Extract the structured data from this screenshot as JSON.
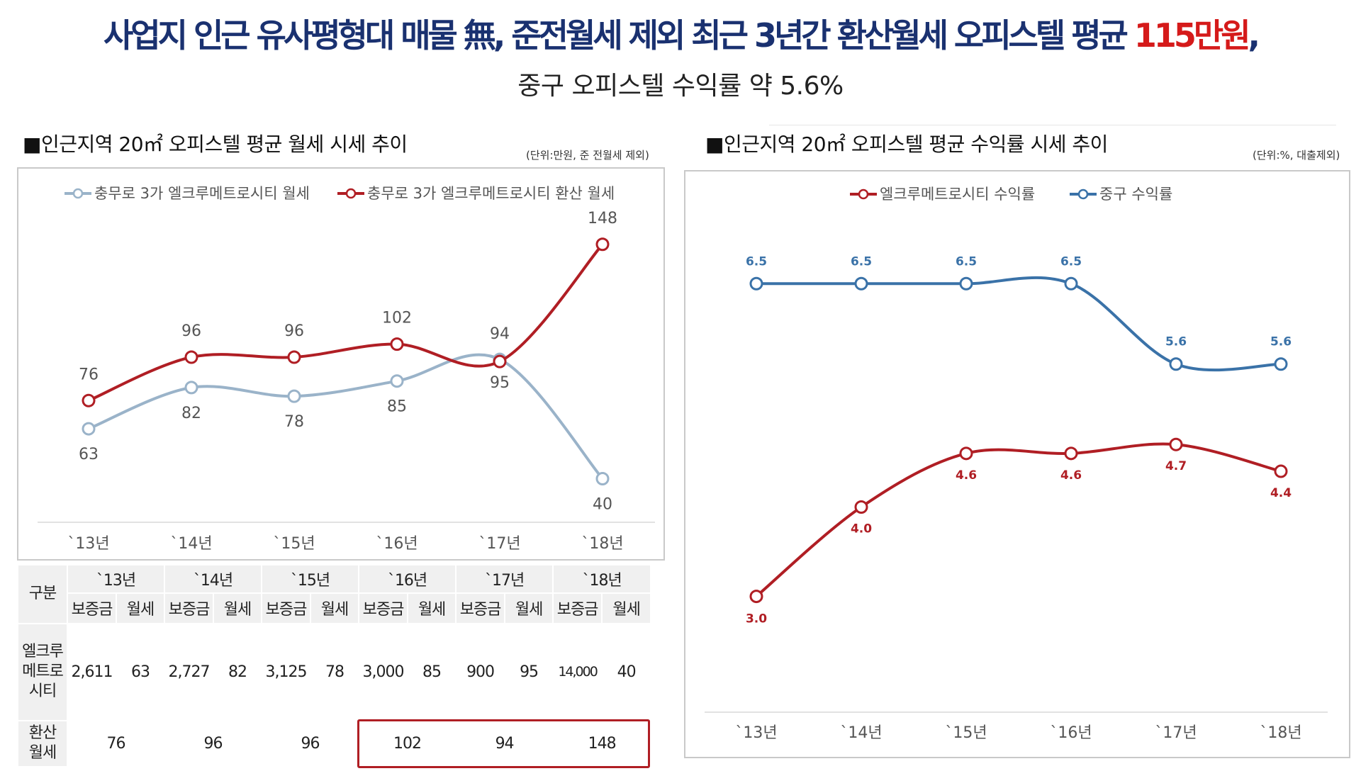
{
  "headline": {
    "text": "사업지 인근 유사평형대 매물 無, 준전월세 제외 최근 3년간 환산월세 오피스텔 평균 ",
    "highlight": "115만원",
    "tail": ",",
    "sub": "중구 오피스텔 수익률 약 5.6%"
  },
  "left": {
    "title": "■인근지역 20㎡ 오피스텔 평균 월세 시세 추이",
    "unit": "(단위:만원, 준 전월세 제외)"
  },
  "right": {
    "title": "■인근지역 20㎡ 오피스텔 평균 수익률 시세 추이",
    "unit": "(단위:%, 대출제외)"
  },
  "chart_data": [
    {
      "type": "line",
      "categories": [
        "`13년",
        "`14년",
        "`15년",
        "`16년",
        "`17년",
        "`18년"
      ],
      "series": [
        {
          "name": "충무로 3가 엘크루메트로시티 월세",
          "values": [
            63,
            82,
            78,
            85,
            95,
            40
          ],
          "color": "#9ab3c9"
        },
        {
          "name": "충무로 3가 엘크루메트로시티 환산 월세",
          "values": [
            76,
            96,
            96,
            102,
            94,
            148
          ],
          "color": "#b01e24"
        }
      ],
      "labels": {
        "s0": [
          "63",
          "82",
          "78",
          "85",
          "95",
          "40"
        ],
        "s1": [
          "76",
          "96",
          "96",
          "102",
          "94",
          "148"
        ]
      },
      "ylim": [
        0,
        160
      ],
      "grid": false,
      "legend": "top"
    },
    {
      "type": "line",
      "categories": [
        "`13년",
        "`14년",
        "`15년",
        "`16년",
        "`17년",
        "`18년"
      ],
      "series": [
        {
          "name": "엘크루메트로시티 수익률",
          "values": [
            3.0,
            4.0,
            4.6,
            4.6,
            4.7,
            4.4
          ],
          "color": "#b01e24"
        },
        {
          "name": "중구 수익률",
          "values": [
            6.5,
            6.5,
            6.5,
            6.5,
            5.6,
            5.6
          ],
          "color": "#3a72a8"
        }
      ],
      "labels": {
        "s0": [
          "3.0",
          "4.0",
          "4.6",
          "4.6",
          "4.7",
          "4.4"
        ],
        "s1": [
          "6.5",
          "6.5",
          "6.5",
          "6.5",
          "5.6",
          "5.6"
        ]
      },
      "ylim": [
        2.6,
        7.2
      ],
      "grid": false,
      "legend": "top"
    }
  ],
  "table": {
    "corner": "구분",
    "years": [
      "`13년",
      "`14년",
      "`15년",
      "`16년",
      "`17년",
      "`18년"
    ],
    "sub_deposit": "보증금",
    "sub_rent": "월세",
    "row1_label": "엘크루메트로시티",
    "row1": [
      [
        "2,611",
        "63"
      ],
      [
        "2,727",
        "82"
      ],
      [
        "3,125",
        "78"
      ],
      [
        "3,000",
        "85"
      ],
      [
        "900",
        "95"
      ],
      [
        "14,000",
        "40"
      ]
    ],
    "row2_label": "환산 월세",
    "row2": [
      "76",
      "96",
      "96",
      "102",
      "94",
      "148"
    ]
  }
}
